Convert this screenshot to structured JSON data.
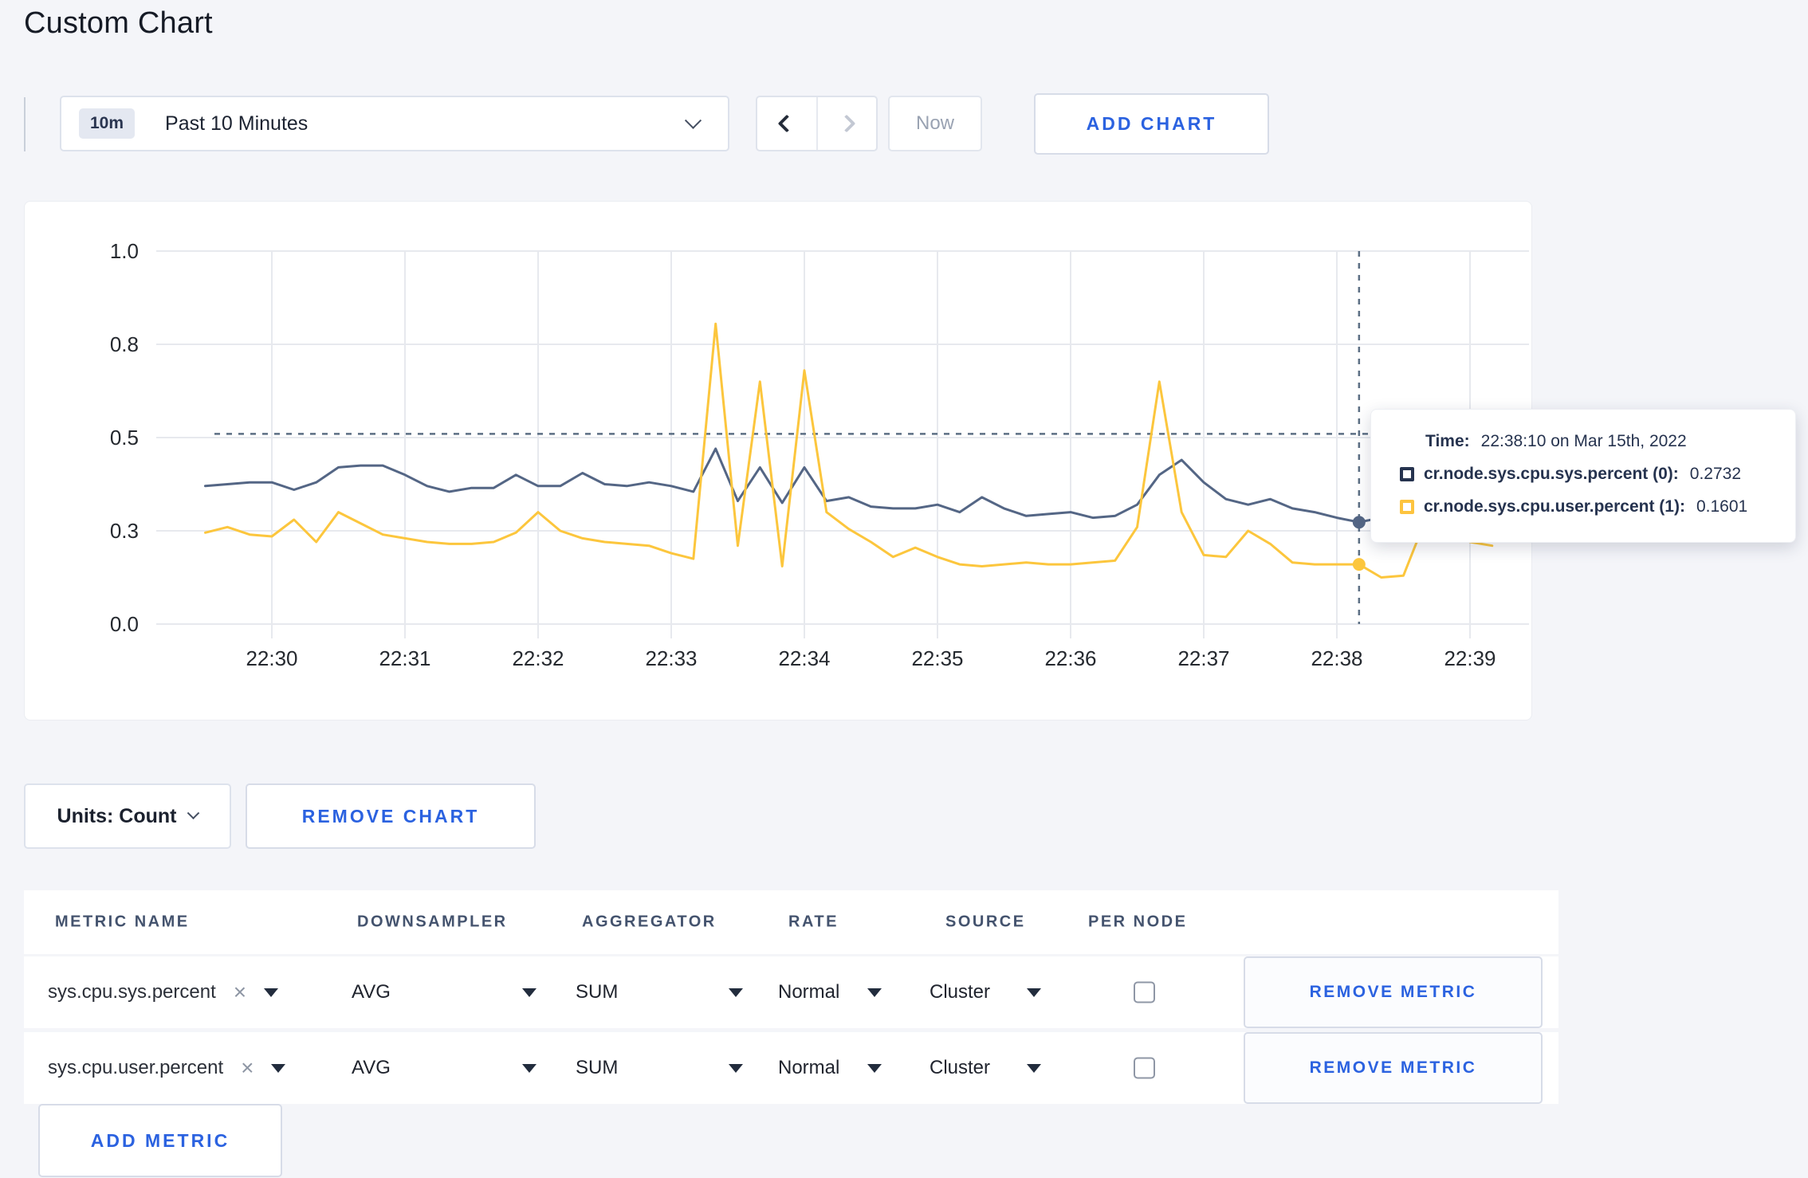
{
  "page": {
    "title": "Custom Chart"
  },
  "toolbar": {
    "range_badge": "10m",
    "range_label": "Past 10 Minutes",
    "now_label": "Now",
    "add_chart_label": "ADD CHART"
  },
  "chart_data": {
    "type": "line",
    "title": "",
    "xlabel": "",
    "ylabel": "",
    "ylim": [
      0,
      1
    ],
    "grid": true,
    "legend_position": "none",
    "y_ticks": [
      {
        "label": "0.0",
        "value": 0
      },
      {
        "label": "0.3",
        "value": 0.25
      },
      {
        "label": "0.5",
        "value": 0.5
      },
      {
        "label": "0.8",
        "value": 0.75
      },
      {
        "label": "1.0",
        "value": 1
      }
    ],
    "x_ticks": [
      "22:30",
      "22:31",
      "22:32",
      "22:33",
      "22:34",
      "22:35",
      "22:36",
      "22:37",
      "22:38",
      "22:39"
    ],
    "x_start": "22:29:30",
    "x_step_seconds": 10,
    "x_start_offset_seconds": -30,
    "series": [
      {
        "name": "cr.node.sys.cpu.sys.percent",
        "color": "#546685",
        "values": [
          0.37,
          0.375,
          0.38,
          0.38,
          0.36,
          0.38,
          0.42,
          0.425,
          0.425,
          0.4,
          0.37,
          0.355,
          0.365,
          0.365,
          0.4,
          0.37,
          0.37,
          0.405,
          0.375,
          0.37,
          0.38,
          0.37,
          0.355,
          0.47,
          0.33,
          0.42,
          0.325,
          0.42,
          0.33,
          0.34,
          0.315,
          0.31,
          0.31,
          0.32,
          0.3,
          0.34,
          0.31,
          0.29,
          0.295,
          0.3,
          0.285,
          0.29,
          0.32,
          0.4,
          0.44,
          0.38,
          0.335,
          0.32,
          0.335,
          0.31,
          0.3,
          0.285,
          0.273,
          0.285,
          0.295,
          0.3,
          0.3,
          0.295,
          0.3
        ]
      },
      {
        "name": "cr.node.sys.cpu.user.percent",
        "color": "#fcc63d",
        "values": [
          0.245,
          0.26,
          0.24,
          0.235,
          0.28,
          0.22,
          0.3,
          0.27,
          0.24,
          0.23,
          0.22,
          0.215,
          0.215,
          0.22,
          0.245,
          0.3,
          0.25,
          0.23,
          0.22,
          0.215,
          0.21,
          0.19,
          0.175,
          0.805,
          0.21,
          0.65,
          0.155,
          0.68,
          0.3,
          0.255,
          0.22,
          0.18,
          0.205,
          0.18,
          0.16,
          0.155,
          0.16,
          0.165,
          0.16,
          0.16,
          0.165,
          0.17,
          0.26,
          0.65,
          0.3,
          0.185,
          0.18,
          0.25,
          0.215,
          0.165,
          0.16,
          0.16,
          0.16,
          0.125,
          0.13,
          0.28,
          0.29,
          0.22,
          0.21
        ]
      }
    ],
    "crosshair": {
      "time": "22:38:10",
      "x_index": 52,
      "y_value": 0.51,
      "marker_values": [
        0.273,
        0.16
      ]
    }
  },
  "tooltip": {
    "time_label": "Time:",
    "time_value": "22:38:10 on Mar 15th, 2022",
    "series": [
      {
        "label": "cr.node.sys.cpu.sys.percent (0):",
        "value": "0.2732",
        "color": "#26334f"
      },
      {
        "label": "cr.node.sys.cpu.user.percent (1):",
        "value": "0.1601",
        "color": "#fdc43f"
      }
    ]
  },
  "chart_footer": {
    "units_label": "Units: Count",
    "remove_chart_label": "REMOVE CHART"
  },
  "table": {
    "headers": [
      "METRIC NAME",
      "DOWNSAMPLER",
      "AGGREGATOR",
      "RATE",
      "SOURCE",
      "PER NODE"
    ],
    "rows": [
      {
        "metric": "sys.cpu.sys.percent",
        "downsampler": "AVG",
        "aggregator": "SUM",
        "rate": "Normal",
        "source": "Cluster",
        "per_node": false,
        "remove_label": "REMOVE METRIC"
      },
      {
        "metric": "sys.cpu.user.percent",
        "downsampler": "AVG",
        "aggregator": "SUM",
        "rate": "Normal",
        "source": "Cluster",
        "per_node": false,
        "remove_label": "REMOVE METRIC"
      }
    ],
    "add_metric_label": "ADD METRIC"
  },
  "icons": {
    "close": "×"
  }
}
